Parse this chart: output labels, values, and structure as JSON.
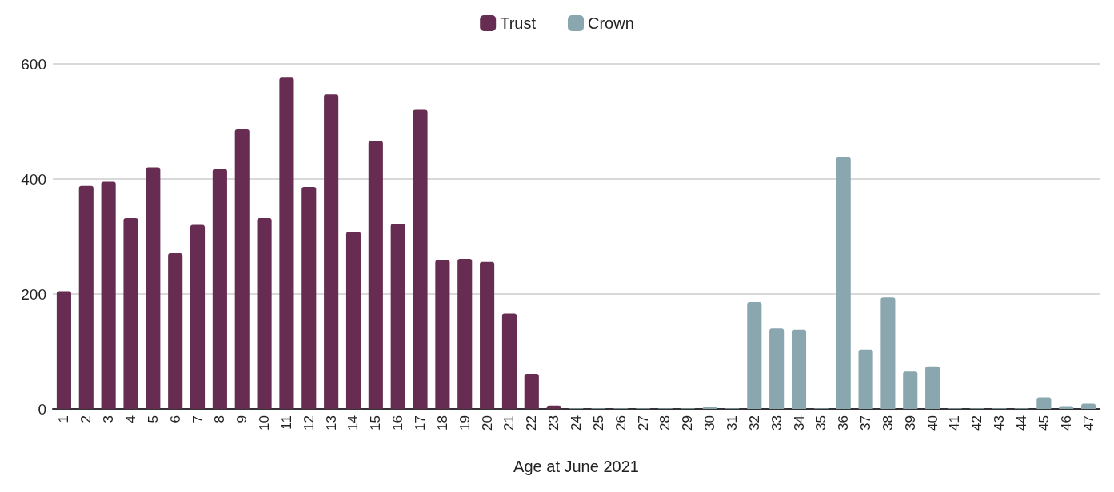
{
  "chart_data": {
    "type": "bar",
    "stacked": true,
    "xlabel": "Age at June 2021",
    "categories": [
      "1",
      "2",
      "3",
      "4",
      "5",
      "6",
      "7",
      "8",
      "9",
      "10",
      "11",
      "12",
      "13",
      "14",
      "15",
      "16",
      "17",
      "18",
      "19",
      "20",
      "21",
      "22",
      "23",
      "24",
      "25",
      "26",
      "27",
      "28",
      "29",
      "30",
      "31",
      "32",
      "33",
      "34",
      "35",
      "36",
      "37",
      "38",
      "39",
      "40",
      "41",
      "42",
      "43",
      "44",
      "45",
      "46",
      "47"
    ],
    "series": [
      {
        "name": "Trust",
        "color": "#672c51",
        "values": [
          205,
          388,
          395,
          332,
          420,
          271,
          320,
          417,
          486,
          332,
          576,
          386,
          547,
          308,
          466,
          322,
          520,
          259,
          261,
          256,
          166,
          61,
          6,
          null,
          null,
          null,
          null,
          null,
          null,
          null,
          null,
          null,
          null,
          null,
          null,
          null,
          null,
          null,
          null,
          null,
          null,
          null,
          null,
          null,
          null,
          null,
          null
        ]
      },
      {
        "name": "Crown",
        "color": "#8aa6ae",
        "values": [
          null,
          null,
          null,
          null,
          null,
          null,
          null,
          null,
          null,
          null,
          null,
          null,
          null,
          null,
          null,
          null,
          null,
          null,
          null,
          null,
          null,
          null,
          null,
          1,
          1,
          1,
          1,
          1,
          1,
          3,
          1,
          186,
          140,
          138,
          1,
          438,
          103,
          194,
          65,
          74,
          1,
          1,
          1,
          1,
          20,
          5,
          9
        ]
      }
    ],
    "ylim": [
      0,
      600
    ],
    "yticks": [
      0,
      200,
      400,
      600
    ],
    "grid": "y",
    "legend": "top"
  }
}
